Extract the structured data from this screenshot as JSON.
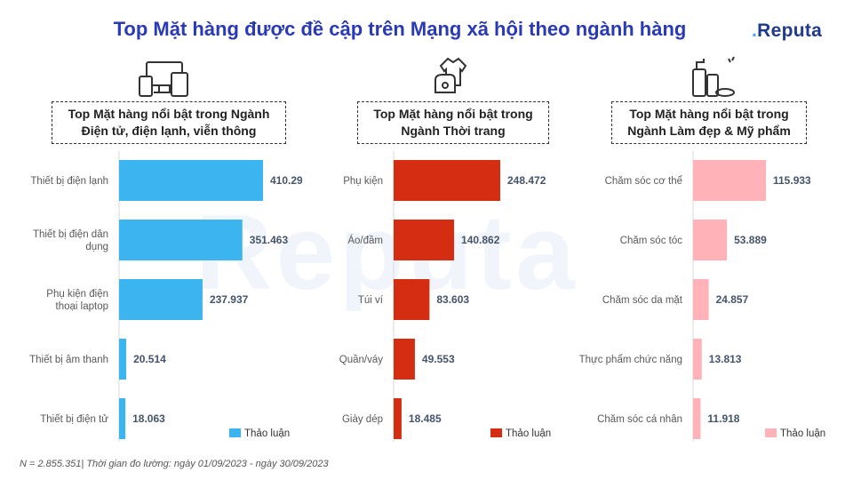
{
  "title": "Top Mặt hàng được đề cập trên Mạng xã hội theo ngành hàng",
  "logo": {
    "prefix": ".",
    "text": "Reputa"
  },
  "watermark": "Reputa",
  "footnote": "N = 2.855.351| Thời gian đo lường: ngày 01/09/2023 - ngày 30/09/2023",
  "panels": [
    {
      "heading_line1": "Top Mặt hàng nổi bật trong Ngành",
      "heading_line2": "Điện tử, điện lạnh, viễn thông",
      "icon": "devices-icon"
    },
    {
      "heading_line1": "Top Mặt hàng nổi bật trong",
      "heading_line2": "Ngành Thời trang",
      "icon": "fashion-icon"
    },
    {
      "heading_line1": "Top Mặt hàng nổi bật trong",
      "heading_line2": "Ngành Làm đẹp & Mỹ phẩm",
      "icon": "cosmetics-icon"
    }
  ],
  "chart_data": [
    {
      "type": "bar",
      "orientation": "horizontal",
      "categories": [
        [
          "Thiết bị điện lạnh"
        ],
        [
          "Thiết bị điện dân",
          "dụng"
        ],
        [
          "Phụ kiện điện",
          "thoại laptop"
        ],
        [
          "Thiết bị âm thanh"
        ],
        [
          "Thiết bị điện tử"
        ]
      ],
      "series": [
        {
          "name": "Thảo luận",
          "values": [
            410297,
            351463,
            237937,
            20514,
            18063
          ]
        }
      ],
      "value_labels": [
        "410.297",
        "351.463",
        "237.937",
        "20.514",
        "18.063"
      ],
      "color": "#3cb4f0",
      "legend": "bottom-right"
    },
    {
      "type": "bar",
      "orientation": "horizontal",
      "categories": [
        [
          "Phụ kiện"
        ],
        [
          "Áo/đầm"
        ],
        [
          "Túi ví"
        ],
        [
          "Quần/váy"
        ],
        [
          "Giày dép"
        ]
      ],
      "series": [
        {
          "name": "Thảo luận",
          "values": [
            248472,
            140862,
            83603,
            49553,
            18485
          ]
        }
      ],
      "value_labels": [
        "248.472",
        "140.862",
        "83.603",
        "49.553",
        "18.485"
      ],
      "color": "#d42d12",
      "legend": "bottom-right"
    },
    {
      "type": "bar",
      "orientation": "horizontal",
      "categories": [
        [
          "Chăm sóc cơ thể"
        ],
        [
          "Chăm sóc tóc"
        ],
        [
          "Chăm sóc da mặt"
        ],
        [
          "Thực phẩm chức năng"
        ],
        [
          "Chăm sóc cá nhân"
        ]
      ],
      "series": [
        {
          "name": "Thảo luận",
          "values": [
            115933,
            53889,
            24857,
            13813,
            11918
          ]
        }
      ],
      "value_labels": [
        "115.933",
        "53.889",
        "24.857",
        "13.813",
        "11.918"
      ],
      "color": "#ffb3b8",
      "legend": "bottom-right"
    }
  ]
}
